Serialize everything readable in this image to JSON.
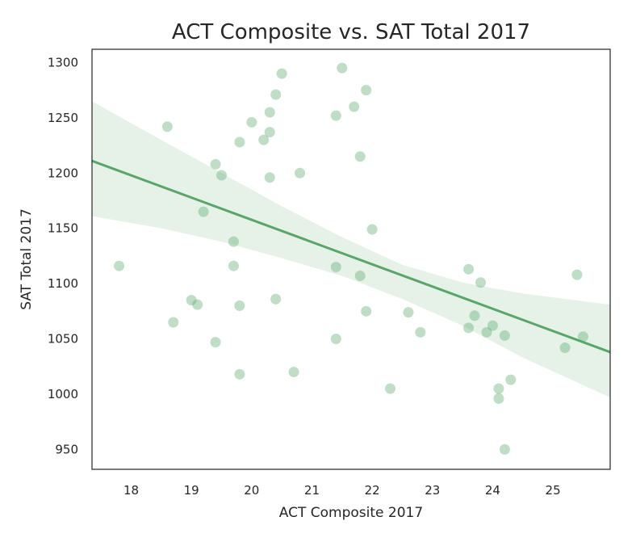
{
  "colors": {
    "point": "#55a868",
    "line": "#55a868",
    "band": "#55a868",
    "frame": "#262626",
    "text": "#262626"
  },
  "chart_data": {
    "type": "scatter",
    "title": "ACT Composite vs. SAT Total 2017",
    "xlabel": "ACT Composite 2017",
    "ylabel": "SAT Total 2017",
    "xlim": [
      17.35,
      25.95
    ],
    "ylim": [
      932,
      1312
    ],
    "xticks": [
      18,
      19,
      20,
      21,
      22,
      23,
      24,
      25
    ],
    "yticks": [
      950,
      1000,
      1050,
      1100,
      1150,
      1200,
      1250,
      1300
    ],
    "grid": false,
    "legend": "none",
    "points": [
      [
        17.8,
        1116
      ],
      [
        18.6,
        1242
      ],
      [
        18.7,
        1065
      ],
      [
        19.0,
        1085
      ],
      [
        19.1,
        1081
      ],
      [
        19.2,
        1165
      ],
      [
        19.4,
        1208
      ],
      [
        19.4,
        1047
      ],
      [
        19.5,
        1198
      ],
      [
        19.7,
        1138
      ],
      [
        19.7,
        1116
      ],
      [
        19.8,
        1228
      ],
      [
        19.8,
        1080
      ],
      [
        19.8,
        1018
      ],
      [
        20.0,
        1246
      ],
      [
        20.2,
        1230
      ],
      [
        20.3,
        1255
      ],
      [
        20.3,
        1237
      ],
      [
        20.3,
        1196
      ],
      [
        20.4,
        1271
      ],
      [
        20.4,
        1086
      ],
      [
        20.5,
        1290
      ],
      [
        20.7,
        1020
      ],
      [
        20.8,
        1200
      ],
      [
        21.4,
        1252
      ],
      [
        21.4,
        1115
      ],
      [
        21.4,
        1050
      ],
      [
        21.5,
        1295
      ],
      [
        21.7,
        1260
      ],
      [
        21.8,
        1215
      ],
      [
        21.8,
        1107
      ],
      [
        21.9,
        1275
      ],
      [
        21.9,
        1075
      ],
      [
        22.0,
        1149
      ],
      [
        22.3,
        1005
      ],
      [
        22.6,
        1074
      ],
      [
        22.8,
        1056
      ],
      [
        23.6,
        1113
      ],
      [
        23.6,
        1060
      ],
      [
        23.7,
        1071
      ],
      [
        23.8,
        1101
      ],
      [
        23.9,
        1056
      ],
      [
        24.0,
        1062
      ],
      [
        24.1,
        1005
      ],
      [
        24.1,
        996
      ],
      [
        24.2,
        1053
      ],
      [
        24.2,
        950
      ],
      [
        24.3,
        1013
      ],
      [
        25.2,
        1042
      ],
      [
        25.4,
        1108
      ],
      [
        25.5,
        1052
      ]
    ],
    "regression": {
      "x": [
        17.35,
        25.95
      ],
      "y": [
        1211,
        1038
      ]
    },
    "confidence_band": {
      "x": [
        17.35,
        18.5,
        19.5,
        20.5,
        21.5,
        22.5,
        23.5,
        24.5,
        25.95
      ],
      "upper": [
        1265,
        1230,
        1200,
        1170,
        1142,
        1117,
        1101,
        1091,
        1081
      ],
      "lower": [
        1161,
        1150,
        1138,
        1123,
        1107,
        1086,
        1062,
        1033,
        997
      ]
    }
  }
}
